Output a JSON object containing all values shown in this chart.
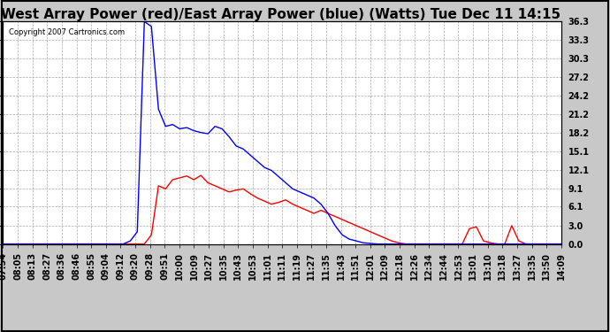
{
  "title": "West Array Power (red)/East Array Power (blue) (Watts) Tue Dec 11 14:15",
  "copyright": "Copyright 2007 Cartronics.com",
  "background_color": "#c8c8c8",
  "plot_bg_color": "#ffffff",
  "grid_color": "#aaaaaa",
  "yticks": [
    0.0,
    3.0,
    6.1,
    9.1,
    12.1,
    15.1,
    18.2,
    21.2,
    24.2,
    27.2,
    30.3,
    33.3,
    36.3
  ],
  "ylim": [
    0.0,
    36.3
  ],
  "xtick_labels": [
    "07:54",
    "08:05",
    "08:13",
    "08:27",
    "08:36",
    "08:46",
    "08:55",
    "09:04",
    "09:12",
    "09:20",
    "09:28",
    "09:51",
    "10:00",
    "10:09",
    "10:27",
    "10:35",
    "10:43",
    "10:53",
    "11:01",
    "11:11",
    "11:19",
    "11:27",
    "11:35",
    "11:43",
    "11:51",
    "12:01",
    "12:09",
    "12:18",
    "12:26",
    "12:34",
    "12:44",
    "12:53",
    "13:01",
    "13:10",
    "13:18",
    "13:27",
    "13:35",
    "13:50",
    "14:09"
  ],
  "blue_y": [
    0,
    0,
    0,
    0,
    0,
    0,
    0,
    0,
    0,
    0,
    0,
    0,
    0,
    0,
    0,
    0,
    0,
    0,
    0.5,
    2.0,
    36.3,
    35.5,
    22.0,
    19.2,
    19.5,
    18.8,
    19.0,
    18.5,
    18.2,
    18.0,
    19.2,
    18.8,
    17.5,
    16.0,
    15.5,
    14.5,
    13.5,
    12.5,
    12.0,
    11.0,
    10.0,
    9.0,
    8.5,
    8.0,
    7.5,
    6.5,
    5.0,
    3.0,
    1.5,
    0.8,
    0.5,
    0.2,
    0.1,
    0.0,
    0.0,
    0.0,
    0.0,
    0.0,
    0.0,
    0.0,
    0.0,
    0.0,
    0.0,
    0.0,
    0.0,
    0.0,
    0.0,
    0.0,
    0.0,
    0.0,
    0.0,
    0.0,
    0.0,
    0.0,
    0.0,
    0.0,
    0.0,
    0.0,
    0.0,
    0.0
  ],
  "red_y": [
    0,
    0,
    0,
    0,
    0,
    0,
    0,
    0,
    0,
    0,
    0,
    0,
    0,
    0,
    0,
    0,
    0,
    0,
    0,
    0,
    0,
    1.5,
    9.5,
    9.0,
    10.5,
    10.8,
    11.1,
    10.5,
    11.2,
    10.0,
    9.5,
    9.0,
    8.5,
    8.8,
    9.0,
    8.2,
    7.5,
    7.0,
    6.5,
    6.8,
    7.2,
    6.5,
    6.0,
    5.5,
    5.0,
    5.5,
    5.0,
    4.5,
    4.0,
    3.5,
    3.0,
    2.5,
    2.0,
    1.5,
    1.0,
    0.5,
    0.2,
    0.0,
    0.0,
    0.0,
    0.0,
    0.0,
    0.0,
    0.0,
    0.0,
    0.0,
    2.5,
    2.8,
    0.5,
    0.2,
    0.0,
    0.0,
    3.0,
    0.5,
    0.0,
    0.0,
    0.0,
    0.0,
    0.0,
    0.0
  ],
  "title_fontsize": 11,
  "tick_fontsize": 7,
  "label_color": "#000000",
  "line_width": 1.0
}
